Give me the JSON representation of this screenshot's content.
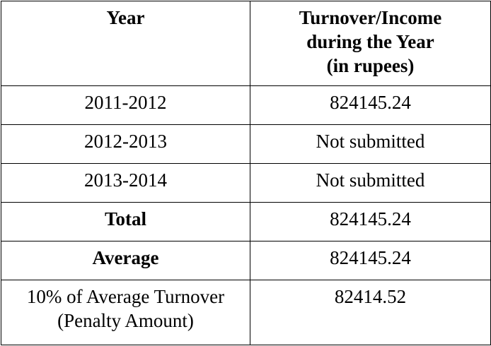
{
  "table": {
    "headers": {
      "year": "Year",
      "turnover_line1": "Turnover/Income",
      "turnover_line2": "during the Year",
      "turnover_line3": "(in rupees)"
    },
    "rows": [
      {
        "year": "2011-2012",
        "value": "824145.24"
      },
      {
        "year": "2012-2013",
        "value": "Not submitted"
      },
      {
        "year": "2013-2014",
        "value": "Not submitted"
      }
    ],
    "total": {
      "label": "Total",
      "value": "824145.24"
    },
    "average": {
      "label": "Average",
      "value": "824145.24"
    },
    "penalty": {
      "label_line1": "10% of Average Turnover",
      "label_line2": "(Penalty Amount)",
      "value": "82414.52"
    }
  }
}
